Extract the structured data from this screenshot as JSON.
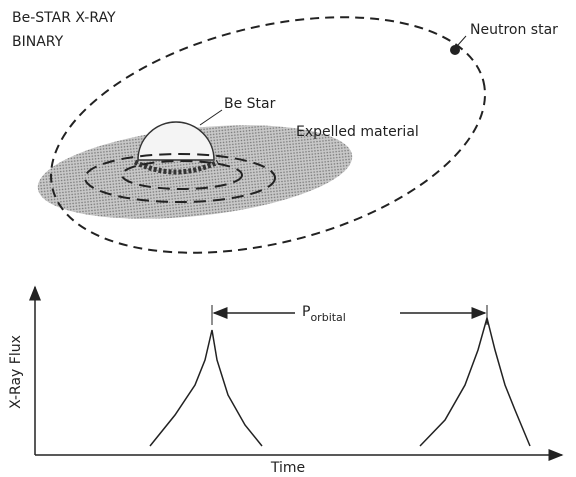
{
  "title": [
    "Be-STAR X-RAY",
    "BINARY"
  ],
  "labels": {
    "neutron_star": "Neutron star",
    "be_star": "Be Star",
    "expelled": "Expelled material"
  },
  "plot": {
    "y_label": "X-Ray Flux",
    "x_label": "Time",
    "period": {
      "symbol": "P",
      "subscript": "orbital"
    }
  }
}
